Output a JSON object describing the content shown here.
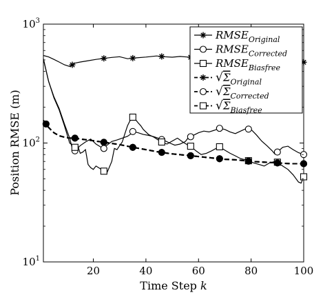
{
  "chart_data": {
    "type": "line",
    "title": "",
    "xlabel": "Time Step",
    "xlabel_var": "k",
    "ylabel": "Position RMSE (m)",
    "xlim": [
      1,
      100
    ],
    "ylim": [
      10,
      1000
    ],
    "yscale": "log",
    "grid": false,
    "legend_position": "top-right",
    "x_ticks": [
      20,
      40,
      60,
      80,
      100
    ],
    "x_tick_labels": [
      "20",
      "40",
      "60",
      "80",
      "100"
    ],
    "y_ticks": [
      10,
      100,
      1000
    ],
    "y_tick_labels": [
      {
        "base": "10",
        "exp": "1"
      },
      {
        "base": "10",
        "exp": "2"
      },
      {
        "base": "10",
        "exp": "3"
      }
    ],
    "series": [
      {
        "name": "RMSE",
        "sub": "Original",
        "style": "solid",
        "marker": "star",
        "x": [
          1,
          3,
          5,
          7,
          9,
          11,
          13,
          15,
          18,
          21,
          24,
          27,
          30,
          33,
          36,
          40,
          44,
          47,
          50,
          53,
          56,
          60,
          63,
          66,
          68,
          70,
          73,
          76,
          79,
          82,
          85,
          88,
          91,
          94,
          97,
          100
        ],
        "y": [
          545,
          530,
          505,
          480,
          455,
          440,
          470,
          480,
          492,
          505,
          515,
          525,
          532,
          512,
          520,
          528,
          540,
          532,
          527,
          535,
          528,
          522,
          535,
          540,
          530,
          515,
          528,
          520,
          512,
          505,
          515,
          508,
          500,
          495,
          488,
          478
        ],
        "marker_x": [
          12,
          24,
          35,
          46,
          57,
          68,
          79,
          90,
          100
        ]
      },
      {
        "name": "RMSE",
        "sub": "Corrected",
        "style": "solid",
        "marker": "circle",
        "x": [
          1,
          3,
          5,
          7,
          9,
          11,
          12,
          13,
          15,
          17,
          19,
          21,
          23,
          24,
          25,
          27,
          29,
          31,
          33,
          34,
          35,
          37,
          39,
          41,
          43,
          45,
          47,
          49,
          51,
          53,
          55,
          56,
          58,
          60,
          62,
          64,
          66,
          68,
          70,
          72,
          74,
          76,
          78,
          80,
          82,
          84,
          86,
          88,
          89,
          90,
          92,
          94,
          96,
          98,
          100
        ],
        "y": [
          510,
          330,
          245,
          195,
          145,
          110,
          90,
          86,
          95,
          102,
          108,
          98,
          92,
          90,
          95,
          103,
          106,
          110,
          114,
          118,
          125,
          122,
          118,
          116,
          113,
          109,
          105,
          100,
          96,
          98,
          103,
          110,
          116,
          122,
          126,
          124,
          128,
          133,
          130,
          124,
          120,
          126,
          132,
          130,
          117,
          104,
          95,
          86,
          81,
          84,
          92,
          94,
          88,
          83,
          80
        ],
        "marker_x": [
          13,
          24,
          35,
          46,
          57,
          68,
          79,
          90,
          100
        ]
      },
      {
        "name": "RMSE",
        "sub": "Biasfree",
        "style": "solid",
        "marker": "square",
        "x": [
          1,
          3,
          5,
          7,
          9,
          11,
          13,
          14,
          15,
          16,
          17,
          18,
          19,
          20,
          21,
          22,
          23,
          24,
          25,
          26,
          27,
          28,
          29,
          30,
          31,
          32,
          33,
          34,
          35,
          36,
          37,
          38,
          39,
          41,
          43,
          45,
          46,
          48,
          50,
          52,
          54,
          56,
          57,
          59,
          61,
          63,
          65,
          67,
          68,
          70,
          72,
          74,
          76,
          78,
          79,
          81,
          83,
          85,
          87,
          89,
          90,
          92,
          94,
          96,
          98,
          99,
          100
        ],
        "y": [
          510,
          330,
          240,
          190,
          140,
          100,
          92,
          96,
          82,
          84,
          88,
          66,
          62,
          60,
          64,
          62,
          60,
          58,
          55,
          62,
          70,
          90,
          88,
          95,
          102,
          120,
          140,
          155,
          165,
          158,
          148,
          140,
          130,
          118,
          112,
          105,
          102,
          98,
          104,
          110,
          102,
          96,
          94,
          86,
          80,
          82,
          86,
          91,
          93,
          87,
          82,
          78,
          74,
          72,
          71,
          68,
          66,
          64,
          68,
          70,
          69,
          64,
          60,
          54,
          47,
          46,
          52
        ],
        "marker_x": [
          13,
          24,
          35,
          46,
          57,
          68,
          79,
          90,
          100
        ]
      },
      {
        "name": "Σ",
        "sub": "Original",
        "style": "dashed",
        "marker": "star",
        "x": [
          1,
          3,
          5,
          7,
          9,
          11,
          13,
          15,
          18,
          22,
          26,
          30,
          35,
          40,
          45,
          50,
          55,
          60,
          65,
          70,
          75,
          80,
          85,
          90,
          95,
          100
        ],
        "y": [
          155,
          135,
          122,
          115,
          112,
          110,
          110,
          108,
          106,
          103,
          100,
          97,
          92,
          88,
          84,
          81,
          79,
          77,
          75,
          73,
          72,
          70,
          69,
          68,
          67,
          67
        ],
        "marker_x": [
          2,
          13,
          24,
          35,
          46,
          57,
          68,
          79,
          90,
          100
        ]
      },
      {
        "name": "Σ",
        "sub": "Corrected",
        "style": "dashed",
        "marker": "circle",
        "x": [
          1,
          3,
          5,
          7,
          9,
          11,
          13,
          15,
          18,
          22,
          26,
          30,
          35,
          40,
          45,
          50,
          55,
          60,
          65,
          70,
          75,
          80,
          85,
          90,
          95,
          100
        ],
        "y": [
          155,
          135,
          122,
          115,
          112,
          110,
          110,
          108,
          106,
          103,
          100,
          97,
          92,
          88,
          84,
          81,
          79,
          77,
          75,
          73,
          72,
          70,
          69,
          68,
          67,
          67
        ],
        "marker_x": [
          2,
          13,
          24,
          35,
          46,
          57,
          68,
          79,
          90,
          100
        ]
      },
      {
        "name": "Σ",
        "sub": "Biasfree",
        "style": "dashed",
        "marker": "square",
        "x": [
          1,
          3,
          5,
          7,
          9,
          11,
          13,
          15,
          18,
          22,
          26,
          30,
          35,
          40,
          45,
          50,
          55,
          60,
          65,
          70,
          75,
          80,
          85,
          90,
          95,
          100
        ],
        "y": [
          155,
          135,
          122,
          115,
          112,
          110,
          110,
          108,
          106,
          103,
          100,
          97,
          92,
          88,
          84,
          81,
          79,
          77,
          75,
          73,
          72,
          70,
          69,
          68,
          67,
          67
        ],
        "marker_x": [
          2,
          13,
          24,
          35,
          46,
          57,
          68,
          79,
          90,
          100
        ]
      }
    ]
  }
}
